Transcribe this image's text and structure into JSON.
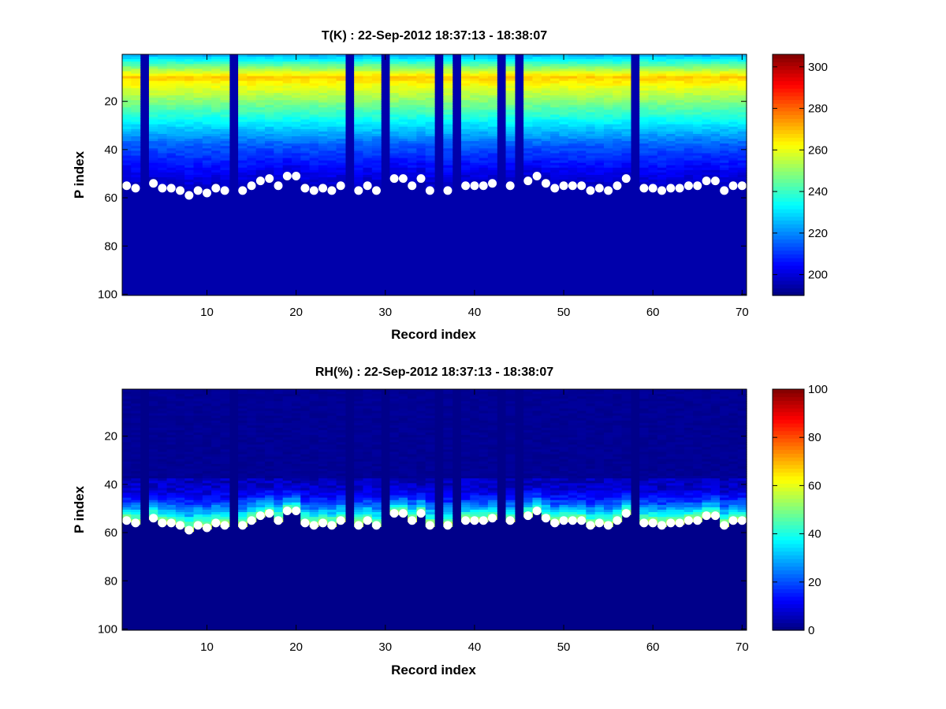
{
  "chart_data": [
    {
      "type": "heatmap",
      "title": "T(K) : 22-Sep-2012 18:37:13 - 18:38:07",
      "xlabel": "Record index",
      "ylabel": "P index",
      "xlim": [
        0.5,
        70.5
      ],
      "ylim": [
        0.5,
        100.5
      ],
      "y_reversed": true,
      "xticks": [
        10,
        20,
        30,
        40,
        50,
        60,
        70
      ],
      "yticks": [
        20,
        40,
        60,
        80,
        100
      ],
      "colormap": "jet",
      "clim": [
        190,
        306
      ],
      "colorbar_ticks": [
        200,
        220,
        240,
        260,
        280,
        300
      ],
      "gap_records": [
        3,
        13,
        26,
        30,
        36,
        38,
        43,
        45,
        58
      ],
      "profile_peak_p": 10,
      "profile_peak_value": 268,
      "profile_top_value": 225,
      "profile_floor_value": 195,
      "marker_color": "#ffffff"
    },
    {
      "type": "heatmap",
      "title": "RH(%) : 22-Sep-2012 18:37:13 - 18:38:07",
      "xlabel": "Record index",
      "ylabel": "P index",
      "xlim": [
        0.5,
        70.5
      ],
      "ylim": [
        0.5,
        100.5
      ],
      "y_reversed": true,
      "xticks": [
        10,
        20,
        30,
        40,
        50,
        60,
        70
      ],
      "yticks": [
        20,
        40,
        60,
        80,
        100
      ],
      "colormap": "jet",
      "clim": [
        0,
        100
      ],
      "colorbar_ticks": [
        0,
        20,
        40,
        60,
        80,
        100
      ],
      "gap_records": [
        3,
        13,
        26,
        30,
        36,
        38,
        43,
        45,
        58
      ],
      "moist_layer_top_p": 38,
      "marker_color": "#ffffff"
    }
  ],
  "surface_markers": {
    "records": [
      1,
      2,
      4,
      5,
      6,
      7,
      8,
      9,
      10,
      11,
      12,
      14,
      15,
      16,
      17,
      18,
      19,
      20,
      21,
      22,
      23,
      24,
      25,
      27,
      28,
      29,
      31,
      32,
      33,
      34,
      35,
      37,
      39,
      40,
      41,
      42,
      44,
      46,
      47,
      48,
      49,
      50,
      51,
      52,
      53,
      54,
      55,
      56,
      57,
      59,
      60,
      61,
      62,
      63,
      64,
      65,
      66,
      67,
      68,
      69,
      70
    ],
    "p_index": [
      55,
      56,
      54,
      56,
      56,
      57,
      59,
      57,
      58,
      56,
      57,
      57,
      55,
      53,
      52,
      55,
      51,
      51,
      56,
      57,
      56,
      57,
      55,
      57,
      55,
      57,
      52,
      52,
      55,
      52,
      57,
      57,
      55,
      55,
      55,
      54,
      55,
      53,
      51,
      54,
      56,
      55,
      55,
      55,
      57,
      56,
      57,
      55,
      52,
      56,
      56,
      57,
      56,
      56,
      55,
      55,
      53,
      53,
      57,
      55,
      55
    ]
  }
}
